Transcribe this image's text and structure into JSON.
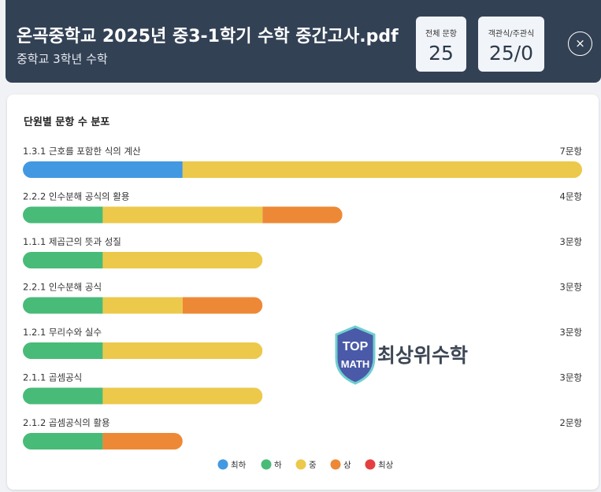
{
  "header": {
    "title": "온곡중학교 2025년 중3-1학기 수학 중간고사.pdf",
    "subtitle": "중학교 3학년 수학",
    "stats": [
      {
        "label": "전체 문항",
        "value": "25"
      },
      {
        "label": "객관식/주관식",
        "value": "25/0"
      }
    ],
    "close_icon": "×"
  },
  "card": {
    "title": "단원별 문항 수 분포"
  },
  "watermark": {
    "shield_text_top": "TOP",
    "shield_text_bottom": "MATH",
    "brand_text": "최상위수학"
  },
  "chart_data": {
    "type": "bar",
    "orientation": "horizontal",
    "stacked": true,
    "title": "단원별 문항 수 분포",
    "unit_suffix": "문항",
    "xlim": [
      0,
      7
    ],
    "categories": [
      "1.3.1 근호를 포함한 식의 계산",
      "2.2.2 인수분해 공식의 활용",
      "1.1.1 제곱근의 뜻과 성질",
      "2.2.1 인수분해 공식",
      "1.2.1 무리수와 실수",
      "2.1.1 곱셈공식",
      "2.1.2 곱셈공식의 활용"
    ],
    "totals": [
      7,
      4,
      3,
      3,
      3,
      3,
      2
    ],
    "series": [
      {
        "name": "최하",
        "color": "#4299e1",
        "values": [
          2,
          0,
          0,
          0,
          0,
          0,
          0
        ]
      },
      {
        "name": "하",
        "color": "#48bb78",
        "values": [
          0,
          1,
          1,
          1,
          1,
          1,
          1
        ]
      },
      {
        "name": "중",
        "color": "#ecc94b",
        "values": [
          5,
          2,
          2,
          1,
          2,
          2,
          0
        ]
      },
      {
        "name": "상",
        "color": "#ed8936",
        "values": [
          0,
          1,
          0,
          1,
          0,
          0,
          1
        ]
      },
      {
        "name": "최상",
        "color": "#e53e3e",
        "values": [
          0,
          0,
          0,
          0,
          0,
          0,
          0
        ]
      }
    ],
    "legend": "bottom-center"
  }
}
